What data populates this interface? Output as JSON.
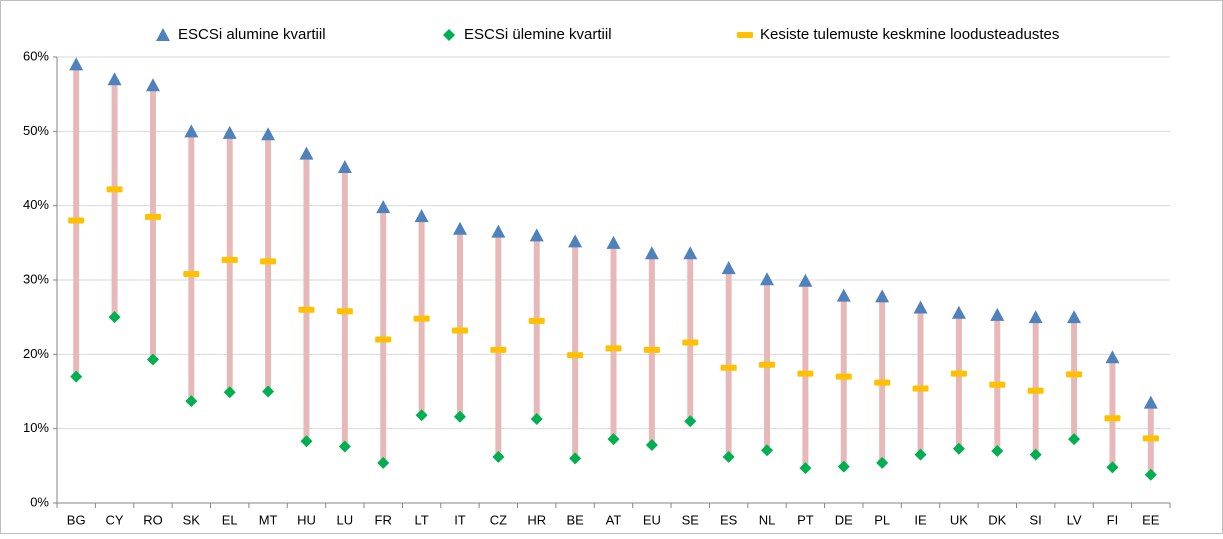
{
  "chart_data": {
    "type": "range",
    "categories": [
      "BG",
      "CY",
      "RO",
      "SK",
      "EL",
      "MT",
      "HU",
      "LU",
      "FR",
      "LT",
      "IT",
      "CZ",
      "HR",
      "BE",
      "AT",
      "EU",
      "SE",
      "ES",
      "NL",
      "PT",
      "DE",
      "PL",
      "IE",
      "UK",
      "DK",
      "SI",
      "LV",
      "FI",
      "EE"
    ],
    "series": [
      {
        "name": "ESCSi alumine kvartiil",
        "color": "#4f81bd",
        "marker": "triangle",
        "values": [
          59,
          57,
          56.2,
          50,
          49.8,
          49.6,
          47,
          45.2,
          39.8,
          38.6,
          36.9,
          36.5,
          36,
          35.2,
          35,
          33.6,
          33.6,
          31.6,
          30.1,
          29.9,
          27.9,
          27.8,
          26.3,
          25.6,
          25.3,
          25,
          25,
          19.6,
          13.5
        ]
      },
      {
        "name": "ESCSi ülemine kvartiil",
        "color": "#00b050",
        "marker": "diamond",
        "values": [
          17,
          25,
          19.3,
          13.7,
          14.9,
          15,
          8.3,
          7.6,
          5.4,
          11.8,
          11.6,
          6.2,
          11.3,
          6,
          8.6,
          7.8,
          11,
          6.2,
          7.1,
          4.7,
          4.9,
          5.4,
          6.5,
          7.3,
          7,
          6.5,
          8.6,
          4.8,
          3.8
        ]
      },
      {
        "name": "Kesiste tulemuste keskmine loodusteadustes",
        "color": "#ffc000",
        "marker": "dash",
        "values": [
          38,
          42.2,
          38.5,
          30.8,
          32.7,
          32.5,
          26,
          25.8,
          22,
          24.8,
          23.2,
          20.6,
          24.5,
          19.9,
          20.8,
          20.6,
          21.6,
          18.2,
          18.6,
          17.4,
          17,
          16.2,
          15.4,
          17.4,
          15.9,
          15.1,
          17.3,
          11.4,
          8.7
        ]
      }
    ],
    "range_color": "#e6b9b8",
    "ylim": [
      0,
      60
    ],
    "yticks": [
      {
        "value": 0,
        "label": "0%"
      },
      {
        "value": 10,
        "label": "10%"
      },
      {
        "value": 20,
        "label": "20%"
      },
      {
        "value": 30,
        "label": "30%"
      },
      {
        "value": 40,
        "label": "40%"
      },
      {
        "value": 50,
        "label": "50%"
      },
      {
        "value": 60,
        "label": "60%"
      }
    ],
    "grid": true
  }
}
